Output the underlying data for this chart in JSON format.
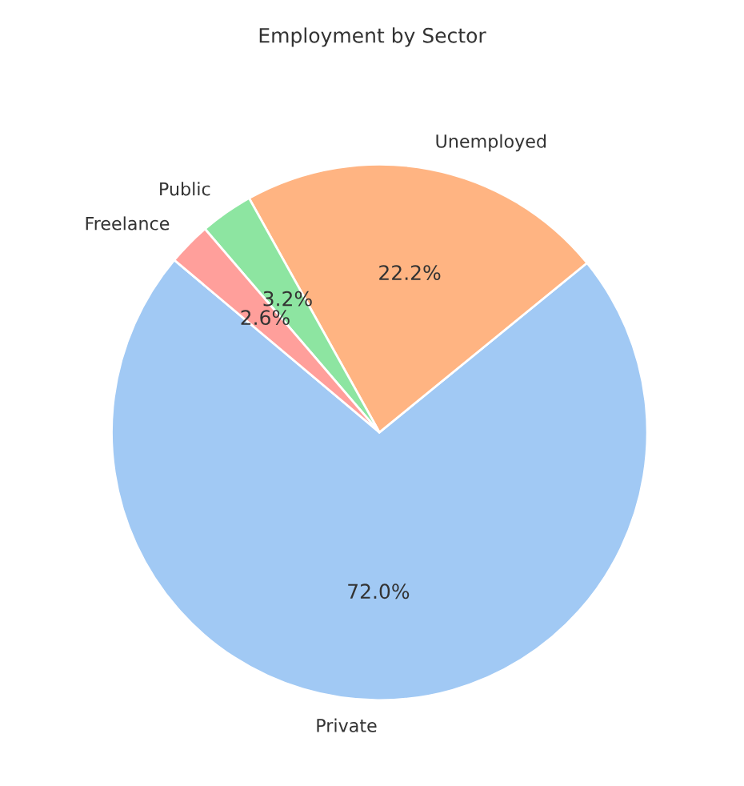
{
  "chart_data": {
    "type": "pie",
    "title": "Employment by Sector",
    "categories": [
      "Private",
      "Unemployed",
      "Public",
      "Freelance"
    ],
    "values": [
      72.0,
      22.2,
      3.2,
      2.6
    ],
    "colors": [
      "#a1c9f4",
      "#ffb482",
      "#8de5a1",
      "#ff9f9b"
    ],
    "value_labels": [
      "72.0%",
      "22.2%",
      "3.2%",
      "2.6%"
    ]
  }
}
